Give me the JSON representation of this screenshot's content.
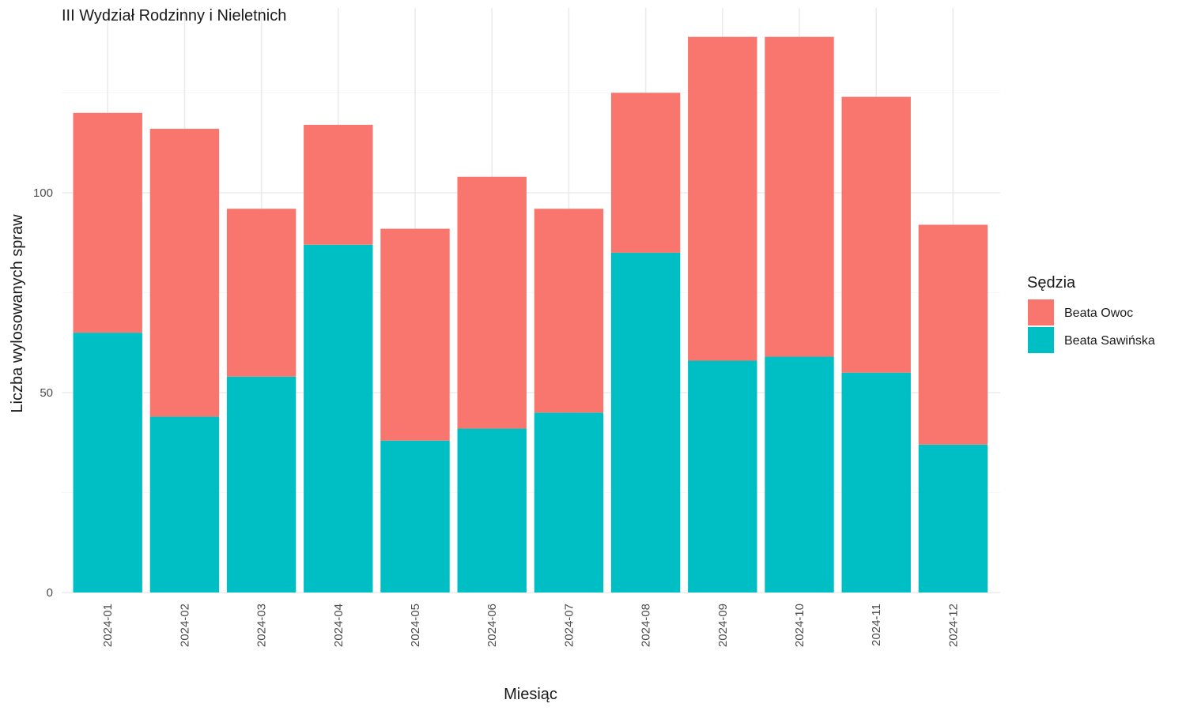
{
  "chart_data": {
    "type": "bar",
    "stacked": true,
    "title": "III Wydział Rodzinny i Nieletnich",
    "xlabel": "Miesiąc",
    "ylabel": "Liczba wylosowanych spraw",
    "categories": [
      "2024-01",
      "2024-02",
      "2024-03",
      "2024-04",
      "2024-05",
      "2024-06",
      "2024-07",
      "2024-08",
      "2024-09",
      "2024-10",
      "2024-11",
      "2024-12"
    ],
    "series": [
      {
        "name": "Beata Sawińska",
        "color": "#00BFC4",
        "values": [
          65,
          44,
          54,
          87,
          38,
          41,
          45,
          85,
          58,
          59,
          55,
          37
        ]
      },
      {
        "name": "Beata Owoc",
        "color": "#F8766D",
        "values": [
          55,
          72,
          42,
          30,
          53,
          63,
          51,
          40,
          81,
          80,
          69,
          55
        ]
      }
    ],
    "ylim": [
      0,
      145
    ],
    "yticks": [
      0,
      50,
      100
    ],
    "grid": true,
    "legend": {
      "title": "Sędzia",
      "position": "right",
      "order": [
        "Beata Owoc",
        "Beata Sawińska"
      ]
    }
  }
}
